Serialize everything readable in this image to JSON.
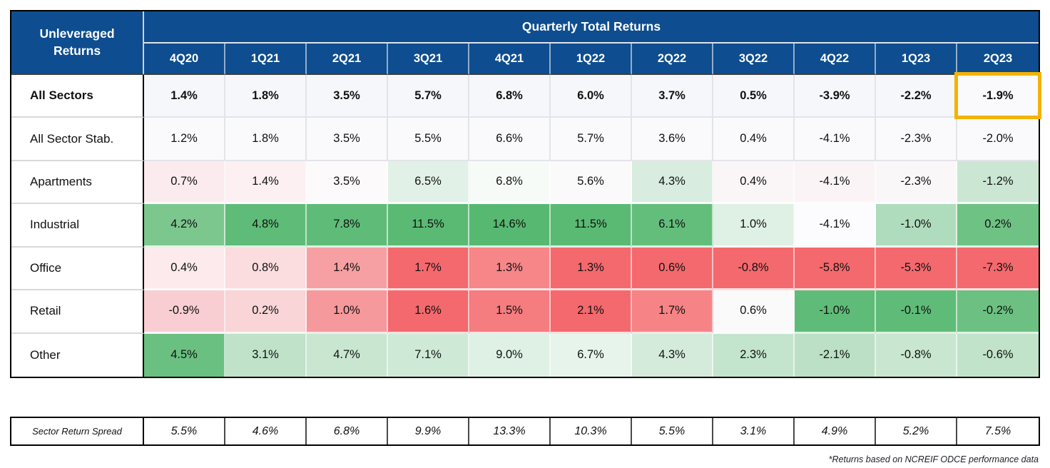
{
  "colors": {
    "header_blue": "#0E4D8F",
    "header_text": "#FFFFFF",
    "cell_text": "#111111",
    "outer_border": "#000000",
    "grid_line": "#D9D9D9",
    "highlight_border": "#F3B300",
    "scale_green": "#63BE7B",
    "scale_red": "#F4696D"
  },
  "chart_data": {
    "type": "heatmap",
    "title": "Quarterly Total Returns",
    "corner_title_line1": "Unleveraged",
    "corner_title_line2": "Returns",
    "columns": [
      "4Q20",
      "1Q21",
      "2Q21",
      "3Q21",
      "4Q21",
      "1Q22",
      "2Q22",
      "3Q22",
      "4Q22",
      "1Q23",
      "2Q23"
    ],
    "rows": [
      {
        "label": "All Sectors",
        "bold": true,
        "values_pct": [
          1.4,
          1.8,
          3.5,
          5.7,
          6.8,
          6.0,
          3.7,
          0.5,
          -3.9,
          -2.2,
          -1.9
        ],
        "cell_colors": [
          "#F6F7FA",
          "#F6F7FA",
          "#F6F7FA",
          "#F6F7FA",
          "#F6F7FA",
          "#F6F7FA",
          "#F6F7FA",
          "#F6F7FA",
          "#F6F7FA",
          "#F6F7FA",
          "#FAFAFC"
        ]
      },
      {
        "label": "All Sector Stab.",
        "bold": false,
        "values_pct": [
          1.2,
          1.8,
          3.5,
          5.5,
          6.6,
          5.7,
          3.6,
          0.4,
          -4.1,
          -2.3,
          -2.0
        ],
        "cell_colors": [
          "#FAFAFC",
          "#FAFAFC",
          "#FAFAFC",
          "#FAFAFC",
          "#FAFAFC",
          "#FAFAFC",
          "#FAFAFC",
          "#FAFAFC",
          "#FAFAFC",
          "#FAFAFC",
          "#FAFAFC"
        ]
      },
      {
        "label": "Apartments",
        "bold": false,
        "values_pct": [
          0.7,
          1.4,
          3.5,
          6.5,
          6.8,
          5.6,
          4.3,
          0.4,
          -4.1,
          -2.3,
          -1.2
        ],
        "cell_colors": [
          "#FBEBEE",
          "#FCF0F2",
          "#FCFAFB",
          "#E2F1E7",
          "#F7FBF8",
          "#FAFAFB",
          "#D8EDDF",
          "#FAF6F8",
          "#FAF4F6",
          "#FAF7F9",
          "#CBE7D4"
        ]
      },
      {
        "label": "Industrial",
        "bold": false,
        "values_pct": [
          4.2,
          4.8,
          7.8,
          11.5,
          14.6,
          11.5,
          6.1,
          1.0,
          -4.1,
          -1.0,
          0.2
        ],
        "cell_colors": [
          "#7CC78E",
          "#5FBC78",
          "#5FBC78",
          "#5ABA74",
          "#57B971",
          "#5ABA74",
          "#63BE7B",
          "#DFF0E4",
          "#FCFCFE",
          "#AFDCBD",
          "#6EC284"
        ]
      },
      {
        "label": "Office",
        "bold": false,
        "values_pct": [
          0.4,
          0.8,
          1.4,
          1.7,
          1.3,
          1.3,
          0.6,
          -0.8,
          -5.8,
          -5.3,
          -7.3
        ],
        "cell_colors": [
          "#FCEAEC",
          "#FBDCDF",
          "#F6A0A3",
          "#F4696D",
          "#F68688",
          "#F4696D",
          "#F4696D",
          "#F4696D",
          "#F4696D",
          "#F4696D",
          "#F4696D"
        ]
      },
      {
        "label": "Retail",
        "bold": false,
        "values_pct": [
          -0.9,
          0.2,
          1.0,
          1.6,
          1.5,
          2.1,
          1.7,
          0.6,
          -1.0,
          -0.1,
          -0.2
        ],
        "cell_colors": [
          "#F9CED2",
          "#F9D5D8",
          "#F6999C",
          "#F4696D",
          "#F57C7F",
          "#F4696D",
          "#F68385",
          "#FBFAFB",
          "#5FBC78",
          "#5FBC78",
          "#6CC182"
        ]
      },
      {
        "label": "Other",
        "bold": false,
        "values_pct": [
          4.5,
          3.1,
          4.7,
          7.1,
          9.0,
          6.7,
          4.3,
          2.3,
          -2.1,
          -0.8,
          -0.6
        ],
        "cell_colors": [
          "#6AC081",
          "#BFE2C9",
          "#C9E6D1",
          "#CFE9D7",
          "#DFF1E5",
          "#E7F4EB",
          "#D4EBDB",
          "#C3E4CD",
          "#BBE0C5",
          "#C8E6D0",
          "#C1E3CA"
        ]
      }
    ],
    "spread_row": {
      "label": "Sector Return Spread",
      "values_pct": [
        5.5,
        4.6,
        6.8,
        9.9,
        13.3,
        10.3,
        5.5,
        3.1,
        4.9,
        5.2,
        7.5
      ]
    },
    "highlighted_cell": {
      "row_label": "All Sectors",
      "column": "2Q23",
      "value_pct": -1.9
    },
    "footnote": "*Returns based on NCREIF ODCE performance data",
    "legend_position": "none",
    "grid": true
  }
}
